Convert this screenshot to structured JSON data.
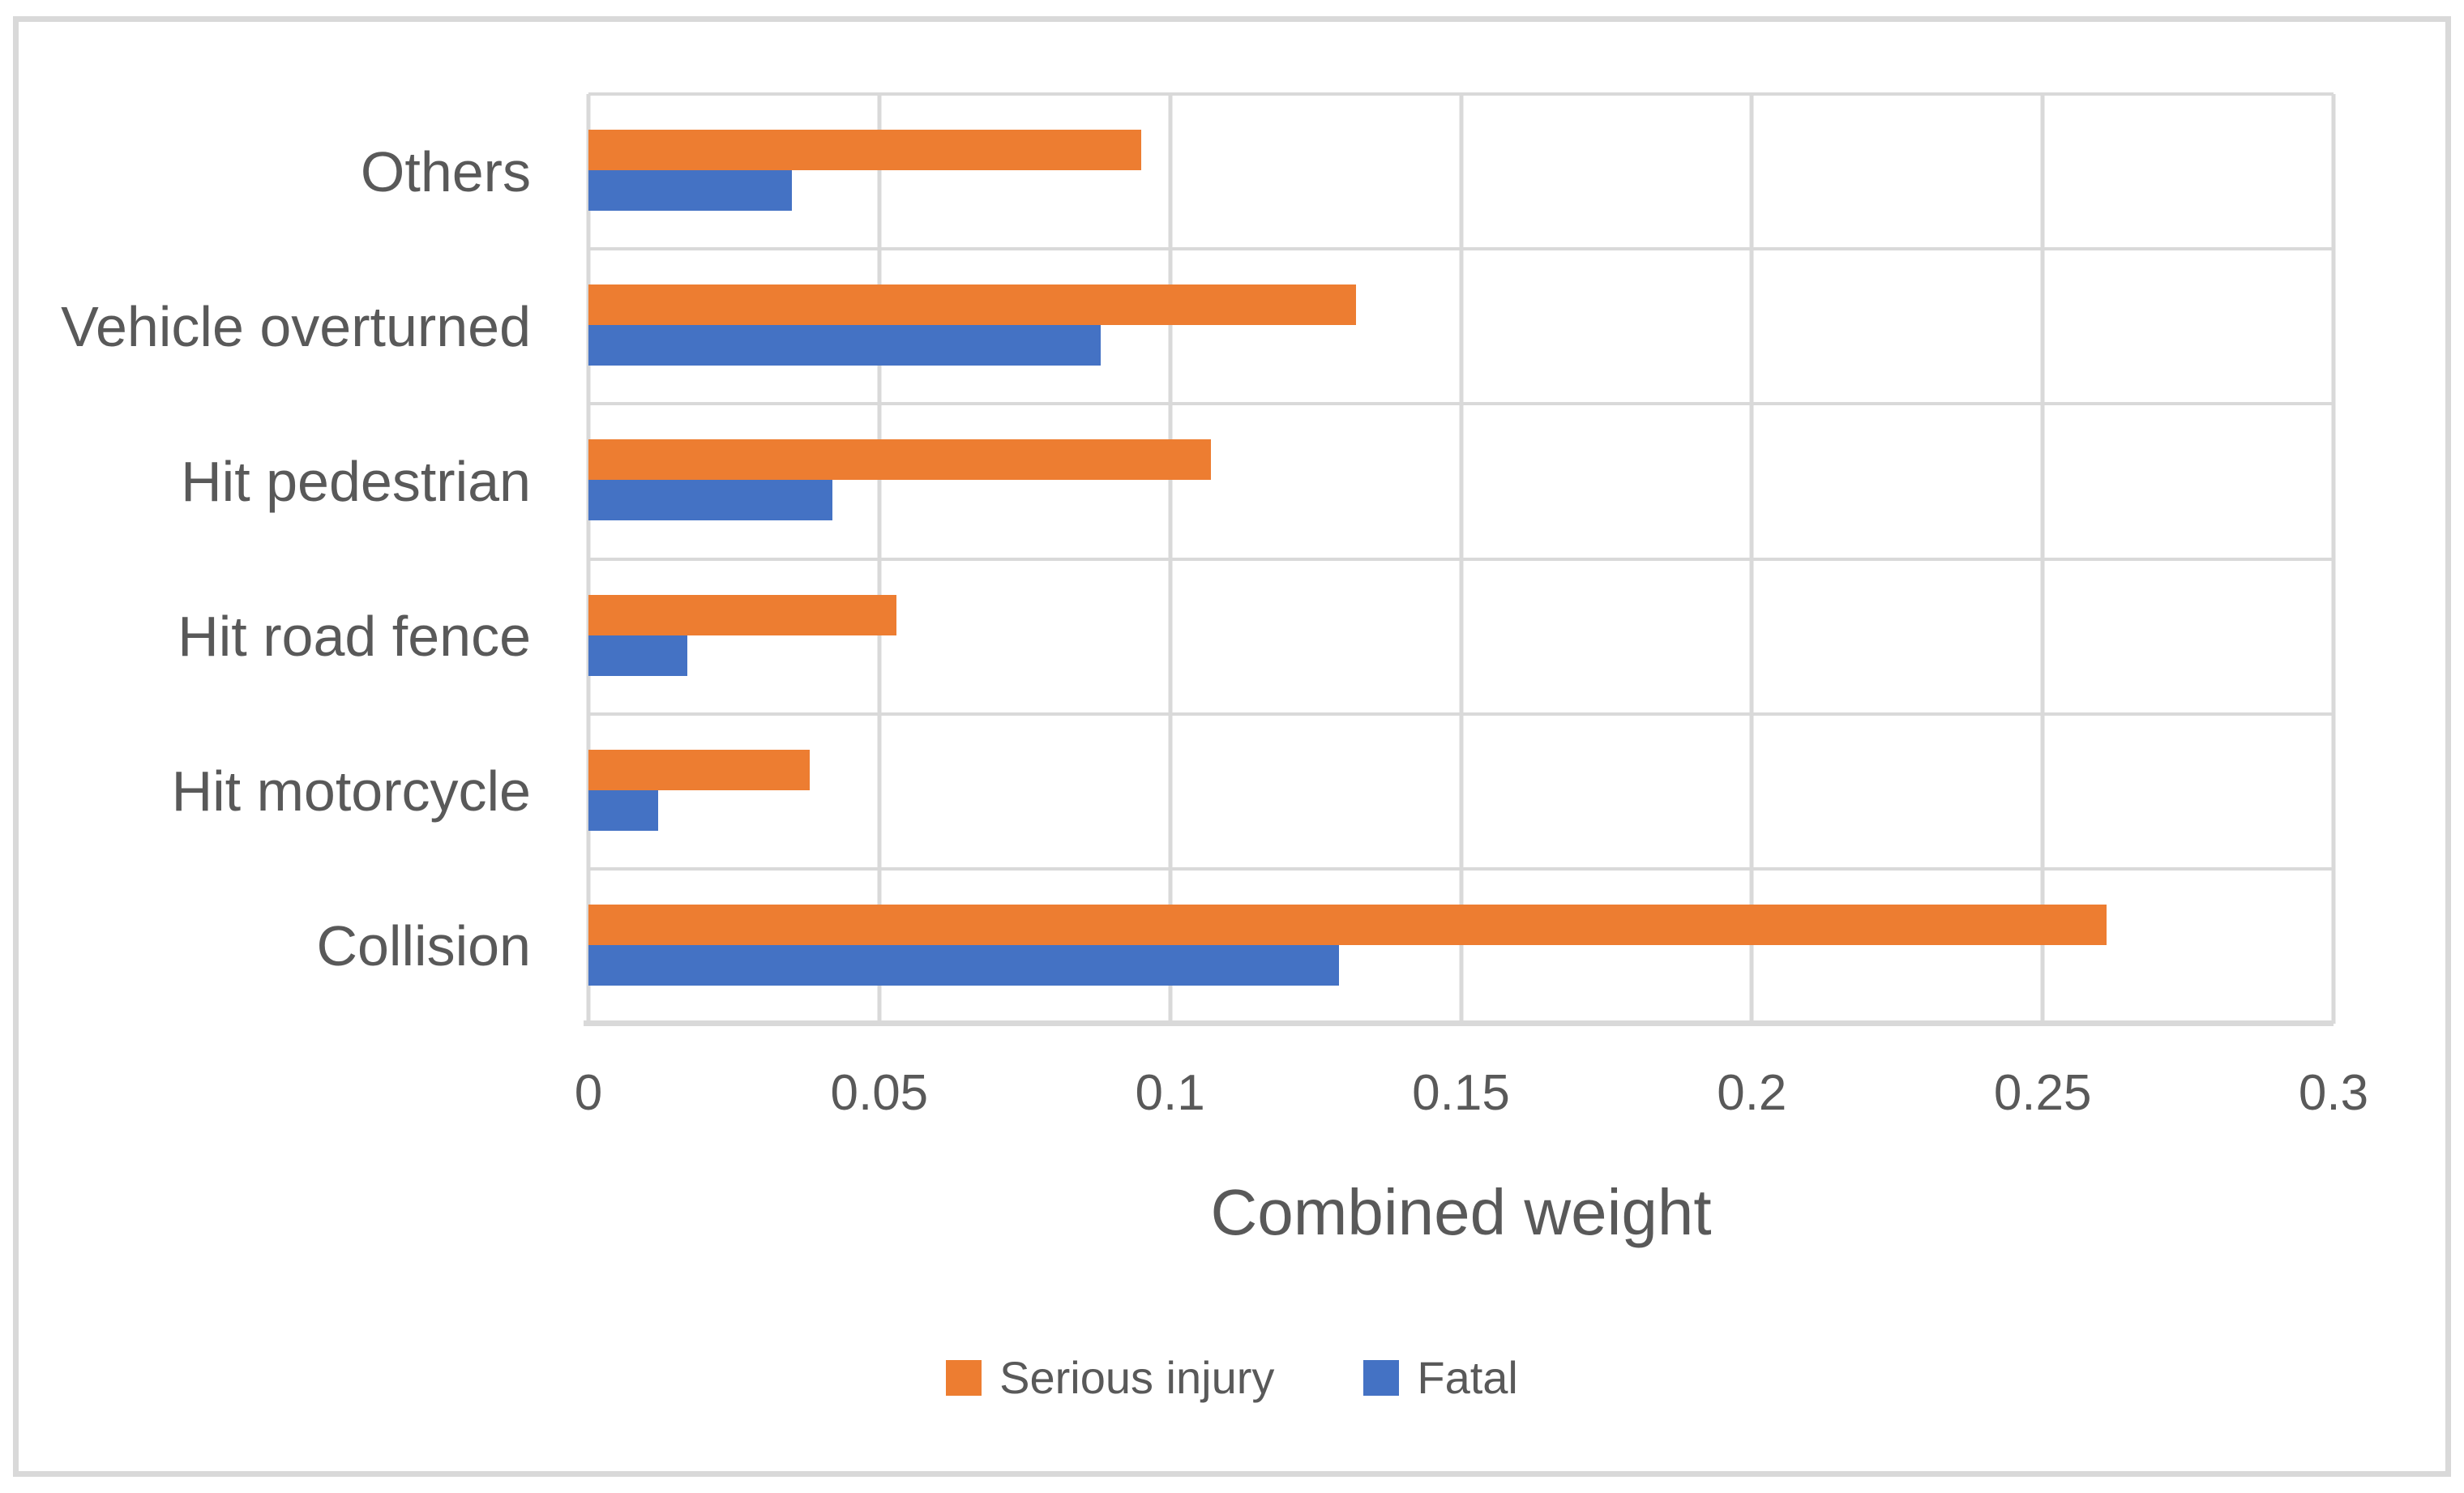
{
  "figure": {
    "background": "#ffffff",
    "border_color": "#d9d9d9"
  },
  "chart_data": {
    "type": "bar",
    "orientation": "horizontal",
    "title": "",
    "xlabel": "Combined weight",
    "ylabel": "",
    "xlim": [
      0,
      0.3
    ],
    "xtick_values": [
      0,
      0.05,
      0.1,
      0.15,
      0.2,
      0.25,
      0.3
    ],
    "xtick_labels": [
      "0",
      "0.05",
      "0.1",
      "0.15",
      "0.2",
      "0.25",
      "0.3"
    ],
    "grid": true,
    "legend_position": "bottom-center",
    "categories": [
      "Others",
      "Vehicle overturned",
      "Hit pedestrian",
      "Hit road fence",
      "Hit motorcycle",
      "Collision"
    ],
    "series": [
      {
        "name": "Serious injury",
        "color": "#ED7D31",
        "values": [
          0.095,
          0.132,
          0.107,
          0.053,
          0.038,
          0.261
        ]
      },
      {
        "name": "Fatal",
        "color": "#4472C4",
        "values": [
          0.035,
          0.088,
          0.042,
          0.017,
          0.012,
          0.129
        ]
      }
    ],
    "colors": {
      "gridline": "#d9d9d9",
      "axis_line": "#d9d9d9",
      "text": "#595959"
    }
  }
}
